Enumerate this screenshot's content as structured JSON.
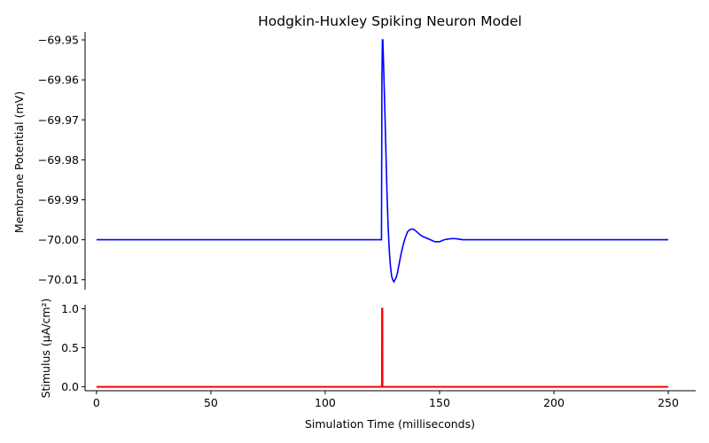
{
  "chart_data": [
    {
      "type": "line",
      "title": "Hodgkin-Huxley Spiking Neuron Model",
      "ylabel": "Membrane Potential (mV)",
      "xlim": [
        -5,
        262
      ],
      "ylim": [
        -70.0125,
        -69.948
      ],
      "yticks": [
        -69.95,
        -69.96,
        -69.97,
        -69.98,
        -69.99,
        -70.0,
        -70.01
      ],
      "ytick_labels": [
        "−69.95",
        "−69.96",
        "−69.97",
        "−69.98",
        "−69.99",
        "−70.00",
        "−70.01"
      ],
      "series": [
        {
          "color": "#0000ff",
          "x": [
            0,
            124.6,
            124.8,
            125.0,
            125.2,
            125.6,
            126.0,
            126.5,
            127,
            127.5,
            128,
            128.5,
            129,
            129.5,
            130,
            130.5,
            131,
            131.5,
            132,
            132.5,
            133,
            134,
            135,
            136,
            137,
            138,
            139,
            140,
            142,
            144,
            146,
            148,
            150,
            152,
            154,
            156,
            158,
            160,
            165,
            170,
            250
          ],
          "y": [
            -70.0,
            -70.0,
            -69.96,
            -69.95,
            -69.95,
            -69.958,
            -69.966,
            -69.977,
            -69.988,
            -69.9965,
            -70.0025,
            -70.0065,
            -70.009,
            -70.01,
            -70.0105,
            -70.01,
            -70.0095,
            -70.0085,
            -70.007,
            -70.0055,
            -70.004,
            -70.0015,
            -69.9995,
            -69.998,
            -69.9975,
            -69.9973,
            -69.9975,
            -69.998,
            -69.999,
            -69.9995,
            -70.0,
            -70.0005,
            -70.0005,
            -70.0,
            -69.9998,
            -69.9997,
            -69.9998,
            -70.0,
            -70.0,
            -70.0,
            -70.0
          ]
        }
      ]
    },
    {
      "type": "line",
      "xlabel": "Simulation Time (milliseconds)",
      "ylabel": "Stimulus (μA/cm²)",
      "xlim": [
        -5,
        262
      ],
      "ylim": [
        -0.05,
        1.05
      ],
      "xticks": [
        0,
        50,
        100,
        150,
        200,
        250
      ],
      "xtick_labels": [
        "0",
        "50",
        "100",
        "150",
        "200",
        "250"
      ],
      "yticks": [
        0.0,
        0.5,
        1.0
      ],
      "ytick_labels": [
        "0.0",
        "0.5",
        "1.0"
      ],
      "series": [
        {
          "color": "#ff0000",
          "x": [
            0,
            124.8,
            124.85,
            125.0,
            125.05,
            250
          ],
          "y": [
            0,
            0,
            1,
            1,
            0,
            0
          ]
        }
      ]
    }
  ]
}
